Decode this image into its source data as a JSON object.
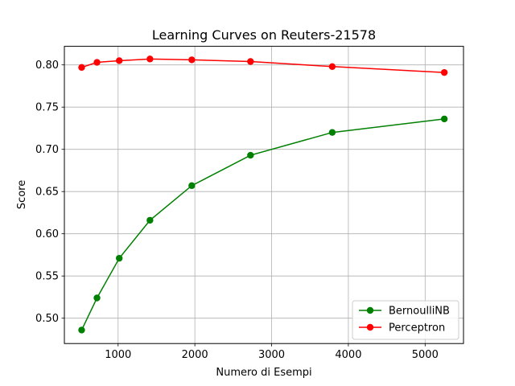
{
  "chart_data": {
    "type": "line",
    "title": "Learning Curves on Reuters-21578",
    "xlabel": "Numero di Esempi",
    "ylabel": "Score",
    "xlim": [
      300,
      5500
    ],
    "ylim": [
      0.47,
      0.822
    ],
    "xticks": [
      1000,
      2000,
      3000,
      4000,
      5000
    ],
    "xtick_labels": [
      "1000",
      "2000",
      "3000",
      "4000",
      "5000"
    ],
    "yticks": [
      0.5,
      0.55,
      0.6,
      0.65,
      0.7,
      0.75,
      0.8
    ],
    "ytick_labels": [
      "0.50",
      "0.55",
      "0.60",
      "0.65",
      "0.70",
      "0.75",
      "0.80"
    ],
    "grid": true,
    "legend_position": "lower-right",
    "x": [
      525,
      725,
      1015,
      1415,
      1960,
      2725,
      3790,
      5250
    ],
    "series": [
      {
        "name": "BernoulliNB",
        "color": "#008000",
        "values": [
          0.486,
          0.524,
          0.571,
          0.616,
          0.657,
          0.693,
          0.72,
          0.736
        ]
      },
      {
        "name": "Perceptron",
        "color": "#ff0000",
        "values": [
          0.797,
          0.803,
          0.805,
          0.807,
          0.806,
          0.804,
          0.798,
          0.791
        ]
      }
    ]
  }
}
